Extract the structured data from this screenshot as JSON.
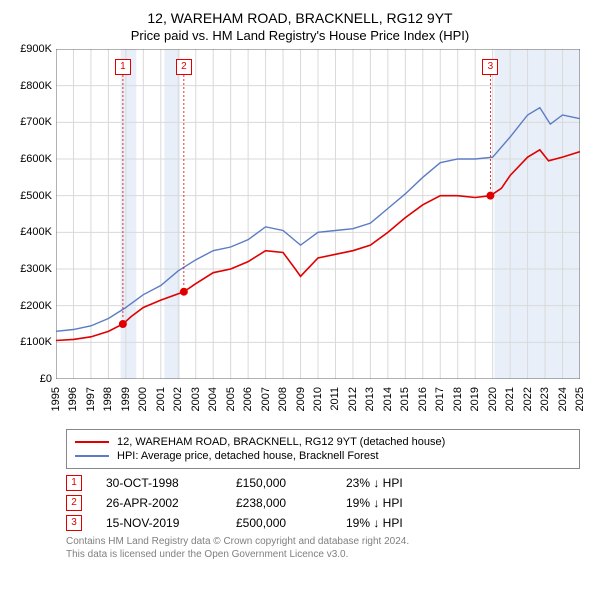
{
  "title": "12, WAREHAM ROAD, BRACKNELL, RG12 9YT",
  "subtitle": "Price paid vs. HM Land Registry's House Price Index (HPI)",
  "chart": {
    "type": "line",
    "background_color": "#ffffff",
    "grid_color": "#d9d9d9",
    "shaded_band_color": "#e9eff9",
    "ylim": [
      0,
      900
    ],
    "ytick_step": 100,
    "y_prefix": "£",
    "y_suffix": "K",
    "xlim": [
      1995,
      2025
    ],
    "xtick_step": 1,
    "series": [
      {
        "id": "property",
        "label": "12, WAREHAM ROAD, BRACKNELL, RG12 9YT (detached house)",
        "color": "#e00000",
        "line_width": 1.6,
        "points": [
          [
            1995,
            105
          ],
          [
            1996,
            108
          ],
          [
            1997,
            115
          ],
          [
            1998,
            130
          ],
          [
            1998.83,
            150
          ],
          [
            1999.3,
            170
          ],
          [
            2000,
            195
          ],
          [
            2001,
            215
          ],
          [
            2002.32,
            238
          ],
          [
            2003,
            260
          ],
          [
            2004,
            290
          ],
          [
            2005,
            300
          ],
          [
            2006,
            320
          ],
          [
            2007,
            350
          ],
          [
            2008,
            345
          ],
          [
            2008.7,
            300
          ],
          [
            2009,
            280
          ],
          [
            2009.6,
            310
          ],
          [
            2010,
            330
          ],
          [
            2011,
            340
          ],
          [
            2012,
            350
          ],
          [
            2013,
            365
          ],
          [
            2014,
            400
          ],
          [
            2015,
            440
          ],
          [
            2016,
            475
          ],
          [
            2017,
            500
          ],
          [
            2018,
            500
          ],
          [
            2019,
            495
          ],
          [
            2019.87,
            500
          ],
          [
            2020.5,
            520
          ],
          [
            2021,
            555
          ],
          [
            2022,
            605
          ],
          [
            2022.7,
            625
          ],
          [
            2023.2,
            595
          ],
          [
            2024,
            605
          ],
          [
            2025,
            620
          ]
        ]
      },
      {
        "id": "hpi",
        "label": "HPI: Average price, detached house, Bracknell Forest",
        "color": "#5b7cc4",
        "line_width": 1.4,
        "points": [
          [
            1995,
            130
          ],
          [
            1996,
            135
          ],
          [
            1997,
            145
          ],
          [
            1998,
            165
          ],
          [
            1999,
            195
          ],
          [
            2000,
            230
          ],
          [
            2001,
            255
          ],
          [
            2002,
            295
          ],
          [
            2003,
            325
          ],
          [
            2004,
            350
          ],
          [
            2005,
            360
          ],
          [
            2006,
            380
          ],
          [
            2007,
            415
          ],
          [
            2008,
            405
          ],
          [
            2009,
            365
          ],
          [
            2010,
            400
          ],
          [
            2011,
            405
          ],
          [
            2012,
            410
          ],
          [
            2013,
            425
          ],
          [
            2014,
            465
          ],
          [
            2015,
            505
          ],
          [
            2016,
            550
          ],
          [
            2017,
            590
          ],
          [
            2018,
            600
          ],
          [
            2019,
            600
          ],
          [
            2020,
            605
          ],
          [
            2021,
            660
          ],
          [
            2022,
            720
          ],
          [
            2022.7,
            740
          ],
          [
            2023.3,
            695
          ],
          [
            2024,
            720
          ],
          [
            2025,
            710
          ]
        ]
      }
    ],
    "shaded_bands": [
      [
        1998.7,
        1999.6
      ],
      [
        2001.2,
        2002.1
      ],
      [
        2020.1,
        2025
      ]
    ],
    "sale_markers": [
      {
        "id": "1",
        "x": 1998.83,
        "y": 150,
        "color": "#e00000"
      },
      {
        "id": "2",
        "x": 2002.32,
        "y": 238,
        "color": "#e00000"
      },
      {
        "id": "3",
        "x": 2019.87,
        "y": 500,
        "color": "#e00000"
      }
    ]
  },
  "sales": [
    {
      "idx": "1",
      "date": "30-OCT-1998",
      "price": "£150,000",
      "delta": "23% ↓ HPI",
      "color": "#e00000"
    },
    {
      "idx": "2",
      "date": "26-APR-2002",
      "price": "£238,000",
      "delta": "19% ↓ HPI",
      "color": "#e00000"
    },
    {
      "idx": "3",
      "date": "15-NOV-2019",
      "price": "£500,000",
      "delta": "19% ↓ HPI",
      "color": "#e00000"
    }
  ],
  "licence_line1": "Contains HM Land Registry data © Crown copyright and database right 2024.",
  "licence_line2": "This data is licensed under the Open Government Licence v3.0."
}
